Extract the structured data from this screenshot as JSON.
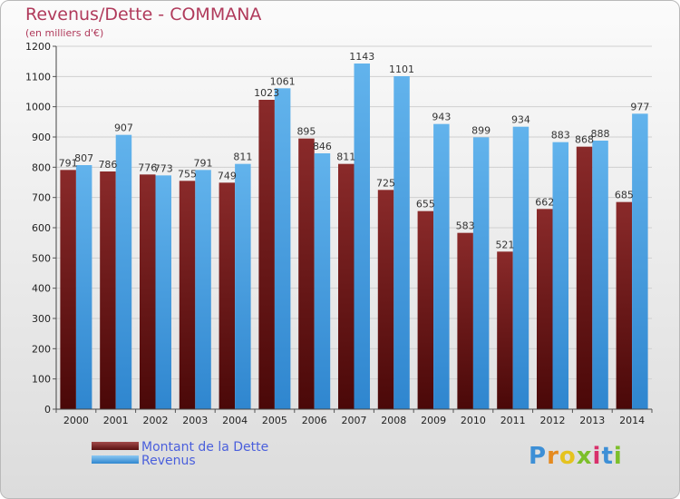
{
  "header": {
    "title": "Revenus/Dette - COMMANA",
    "subtitle": "(en milliers d'€)"
  },
  "chart_data": {
    "type": "bar",
    "categories": [
      "2000",
      "2001",
      "2002",
      "2003",
      "2004",
      "2005",
      "2006",
      "2007",
      "2008",
      "2009",
      "2010",
      "2011",
      "2012",
      "2013",
      "2014"
    ],
    "series": [
      {
        "name": "Montant de la Dette",
        "color": "#7a1f1f",
        "values": [
          791,
          786,
          776,
          755,
          749,
          1023,
          895,
          811,
          725,
          655,
          583,
          521,
          662,
          868,
          685
        ],
        "labels": [
          "791",
          "786",
          "776",
          "755",
          "749",
          "1023",
          "895",
          "811",
          "725",
          "655",
          "583",
          "521",
          "662",
          "868",
          "685"
        ]
      },
      {
        "name": "Revenus",
        "color": "#4ba3e3",
        "values": [
          807,
          907,
          773,
          791,
          811,
          1061,
          846,
          1143,
          1101,
          943,
          899,
          934,
          883,
          888,
          977
        ],
        "labels": [
          "807",
          "907",
          "773",
          "791",
          "811",
          "1061",
          "846",
          "1143",
          "1101",
          "943",
          "899",
          "934",
          "883",
          "888",
          "977"
        ]
      }
    ],
    "y_ticks": [
      "0",
      "100",
      "200",
      "300",
      "400",
      "500",
      "600",
      "700",
      "800",
      "900",
      "1000",
      "1100",
      "1200"
    ],
    "ylim": [
      0,
      1200
    ],
    "grid": true,
    "legend_position": "bottom-left"
  },
  "legend": {
    "items": [
      {
        "label": "Montant de la Dette",
        "color": "#7a1f1f"
      },
      {
        "label": "Revenus",
        "color": "#4ba3e3"
      }
    ]
  },
  "brand": {
    "letters": [
      "P",
      "r",
      "o",
      "x",
      "i",
      "t",
      "i"
    ],
    "colors": [
      "#3d8fd6",
      "#e58a1f",
      "#e5c31f",
      "#7cbf2a",
      "#d8306b",
      "#3d8fd6",
      "#7cbf2a"
    ]
  }
}
